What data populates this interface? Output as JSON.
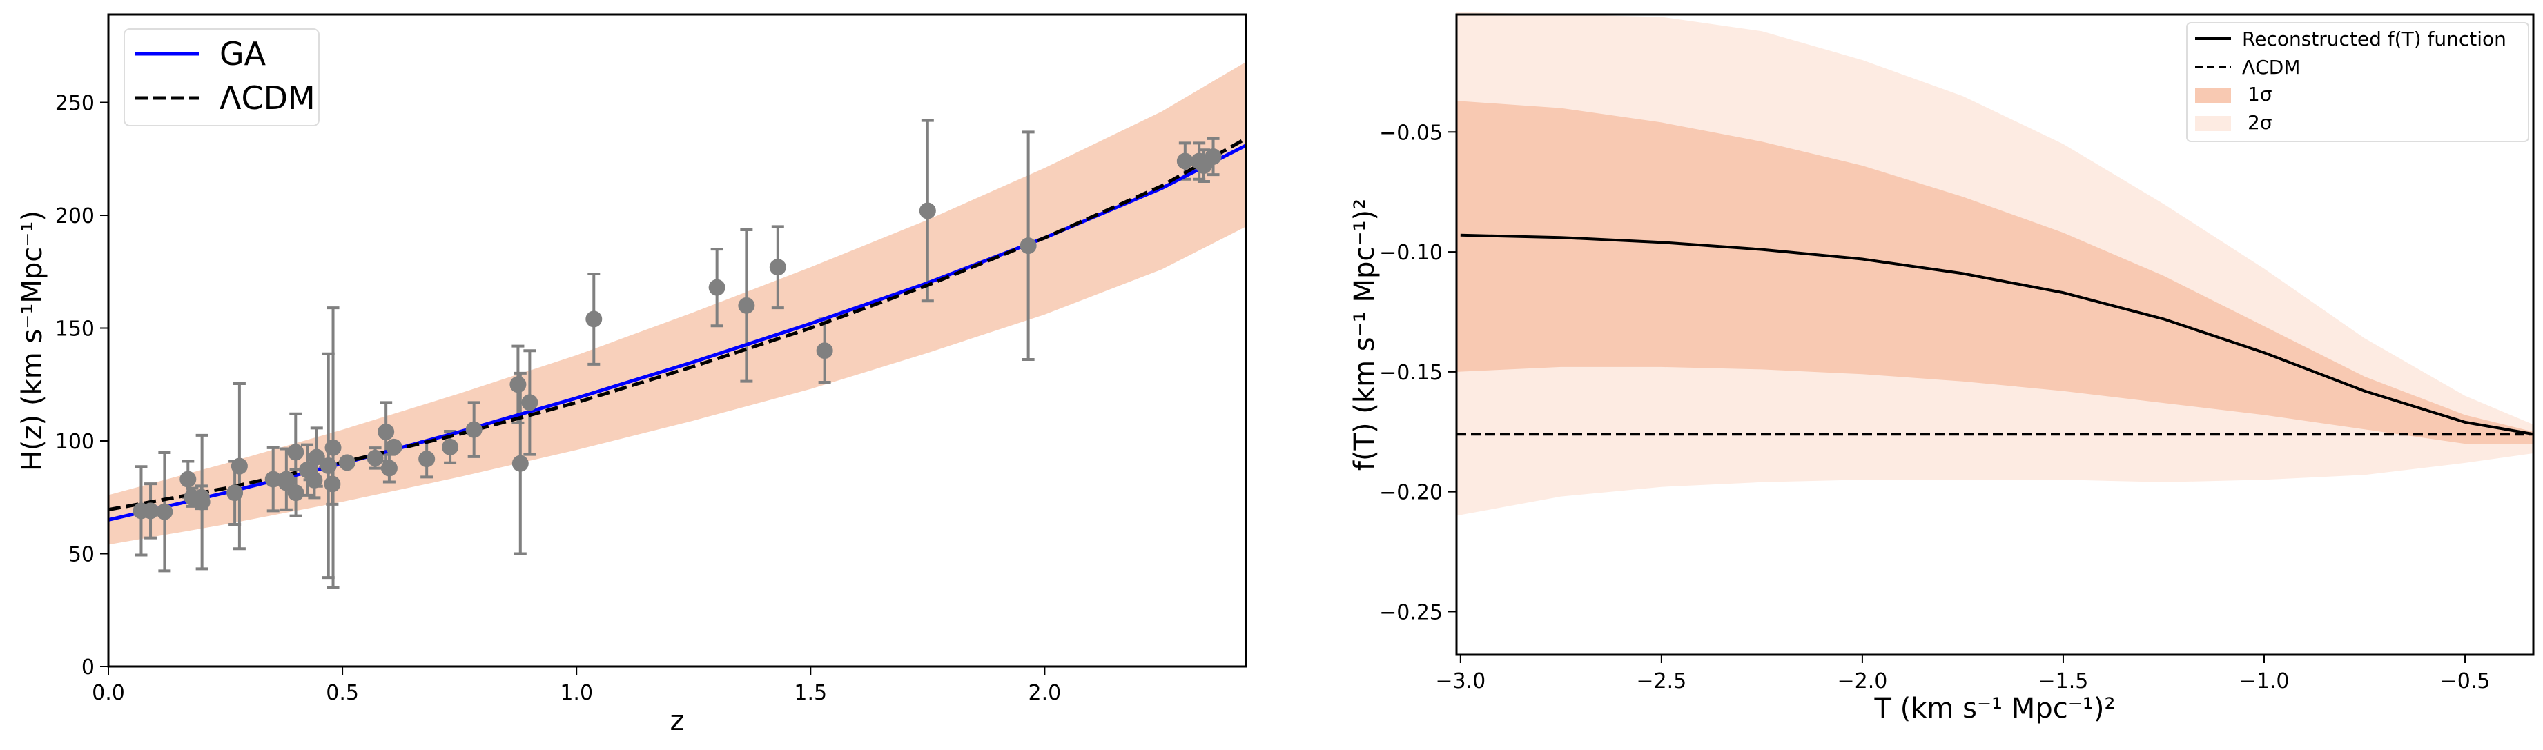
{
  "chart_data": [
    {
      "type": "scatter",
      "title": "",
      "xlabel": "z",
      "ylabel": "H(z) (km s⁻¹Mpc⁻¹)",
      "xlim": [
        0,
        2.43
      ],
      "ylim": [
        0,
        289
      ],
      "xticks": [
        0.0,
        0.5,
        1.0,
        1.5,
        2.0
      ],
      "xtick_labels": [
        "0.0",
        "0.5",
        "1.0",
        "1.5",
        "2.0"
      ],
      "yticks": [
        0,
        50,
        100,
        150,
        200,
        250
      ],
      "ytick_labels": [
        "0",
        "50",
        "100",
        "150",
        "200",
        "250"
      ],
      "grid": false,
      "legend_position": "top-left",
      "legend": [
        {
          "label": "GA",
          "style": "solid",
          "color": "#0000ff"
        },
        {
          "label": "ΛCDM",
          "style": "dashed",
          "color": "#000000"
        }
      ],
      "band_color": "#f8d0bb",
      "points_color": "#808080",
      "series": [
        {
          "name": "GA",
          "x": [
            0,
            0.25,
            0.5,
            0.75,
            1.0,
            1.25,
            1.5,
            1.75,
            2.0,
            2.25,
            2.43
          ],
          "values": [
            65,
            77,
            90,
            104,
            119,
            135,
            152,
            170,
            190,
            212,
            231
          ]
        },
        {
          "name": "ΛCDM",
          "x": [
            0,
            0.25,
            0.5,
            0.75,
            1.0,
            1.25,
            1.5,
            1.75,
            2.0,
            2.25,
            2.43
          ],
          "values": [
            69.5,
            79,
            90.5,
            103,
            117,
            133,
            150,
            169,
            190,
            213,
            234
          ]
        },
        {
          "name": "band",
          "x": [
            0,
            0.25,
            0.5,
            0.75,
            1.0,
            1.25,
            1.5,
            1.75,
            2.0,
            2.25,
            2.43
          ],
          "upper": [
            76,
            90,
            105,
            121,
            138,
            157,
            177,
            198,
            221,
            246,
            268
          ],
          "lower": [
            54,
            63,
            73,
            84,
            96,
            109,
            123,
            139,
            156,
            176,
            195
          ]
        },
        {
          "name": "H(z) data",
          "x": [
            0.07,
            0.09,
            0.12,
            0.17,
            0.179,
            0.199,
            0.2,
            0.27,
            0.28,
            0.352,
            0.38,
            0.3802,
            0.4,
            0.4004,
            0.4247,
            0.43,
            0.44,
            0.44497,
            0.47,
            0.4783,
            0.48,
            0.51,
            0.57,
            0.593,
            0.6,
            0.61,
            0.68,
            0.73,
            0.781,
            0.875,
            0.88,
            0.9,
            1.037,
            1.3,
            1.363,
            1.43,
            1.53,
            1.75,
            1.965,
            2.3,
            2.33,
            2.34,
            2.36
          ],
          "values": [
            69,
            69,
            68.6,
            83,
            75,
            75,
            72.9,
            77,
            88.8,
            83,
            81.5,
            83,
            95,
            77,
            87.1,
            86.5,
            82.6,
            92.8,
            89,
            80.9,
            97,
            90.4,
            92.4,
            104,
            87.9,
            97.3,
            92,
            97.3,
            105,
            125,
            90,
            117,
            154,
            168,
            160,
            177,
            140,
            202,
            186.5,
            224,
            224,
            222,
            226
          ],
          "errors": [
            19.6,
            12,
            26.2,
            8,
            4,
            5,
            29.6,
            14,
            36.6,
            14,
            1.9,
            13.5,
            17,
            10.2,
            11.2,
            3.7,
            7.8,
            12.9,
            49.6,
            9,
            62,
            1.9,
            4.5,
            13,
            6.1,
            2.1,
            8,
            7,
            12,
            17,
            40,
            23,
            20,
            17,
            33.6,
            18,
            14,
            40,
            50.4,
            8,
            8,
            7,
            8
          ]
        }
      ]
    },
    {
      "type": "line",
      "title": "",
      "xlabel": "T (km s⁻¹ Mpc⁻¹)²",
      "ylabel": "f(T) (km s⁻¹ Mpc⁻¹)²",
      "xlim": [
        -3.01,
        -0.33
      ],
      "ylim": [
        -0.268,
        -0.001
      ],
      "xticks": [
        -3.0,
        -2.5,
        -2.0,
        -1.5,
        -1.0,
        -0.5
      ],
      "xtick_labels": [
        "−3.0",
        "−2.5",
        "−2.0",
        "−1.5",
        "−1.0",
        "−0.5"
      ],
      "yticks": [
        -0.05,
        -0.1,
        -0.15,
        -0.2,
        -0.25
      ],
      "ytick_labels": [
        "−0.05",
        "−0.10",
        "−0.15",
        "−0.20",
        "−0.25"
      ],
      "grid": false,
      "legend_position": "top-right",
      "legend": [
        {
          "label": "Reconstructed f(T) function",
          "style": "solid",
          "color": "#000000"
        },
        {
          "label": "ΛCDM",
          "style": "dashed",
          "color": "#000000"
        },
        {
          "label": "1σ",
          "style": "patch",
          "color": "#f8c9b2"
        },
        {
          "label": "2σ",
          "style": "patch",
          "color": "#fdebe2"
        }
      ],
      "series": [
        {
          "name": "Reconstructed f(T) function",
          "x": [
            -3.0,
            -2.75,
            -2.5,
            -2.25,
            -2.0,
            -1.75,
            -1.5,
            -1.25,
            -1.0,
            -0.75,
            -0.5,
            -0.33
          ],
          "values": [
            -0.093,
            -0.094,
            -0.096,
            -0.099,
            -0.103,
            -0.109,
            -0.117,
            -0.128,
            -0.142,
            -0.158,
            -0.171,
            -0.176
          ]
        },
        {
          "name": "ΛCDM",
          "x": [
            -3.01,
            -0.33
          ],
          "values": [
            -0.176,
            -0.176
          ]
        },
        {
          "name": "1σ",
          "x": [
            -3.01,
            -2.75,
            -2.5,
            -2.25,
            -2.0,
            -1.75,
            -1.5,
            -1.25,
            -1.0,
            -0.75,
            -0.5,
            -0.33
          ],
          "upper": [
            -0.037,
            -0.04,
            -0.046,
            -0.054,
            -0.064,
            -0.077,
            -0.092,
            -0.11,
            -0.131,
            -0.152,
            -0.168,
            -0.175
          ],
          "lower": [
            -0.15,
            -0.148,
            -0.148,
            -0.149,
            -0.151,
            -0.154,
            -0.158,
            -0.163,
            -0.168,
            -0.174,
            -0.18,
            -0.18
          ]
        },
        {
          "name": "2σ",
          "x": [
            -3.01,
            -2.75,
            -2.5,
            -2.25,
            -2.0,
            -1.75,
            -1.5,
            -1.25,
            -1.0,
            -0.75,
            -0.5,
            -0.33
          ],
          "upper": [
            0.0,
            -0.001,
            -0.002,
            -0.008,
            -0.02,
            -0.035,
            -0.055,
            -0.08,
            -0.107,
            -0.136,
            -0.16,
            -0.172
          ],
          "lower": [
            -0.21,
            -0.202,
            -0.198,
            -0.196,
            -0.195,
            -0.195,
            -0.195,
            -0.196,
            -0.195,
            -0.193,
            -0.188,
            -0.184
          ]
        }
      ]
    }
  ]
}
